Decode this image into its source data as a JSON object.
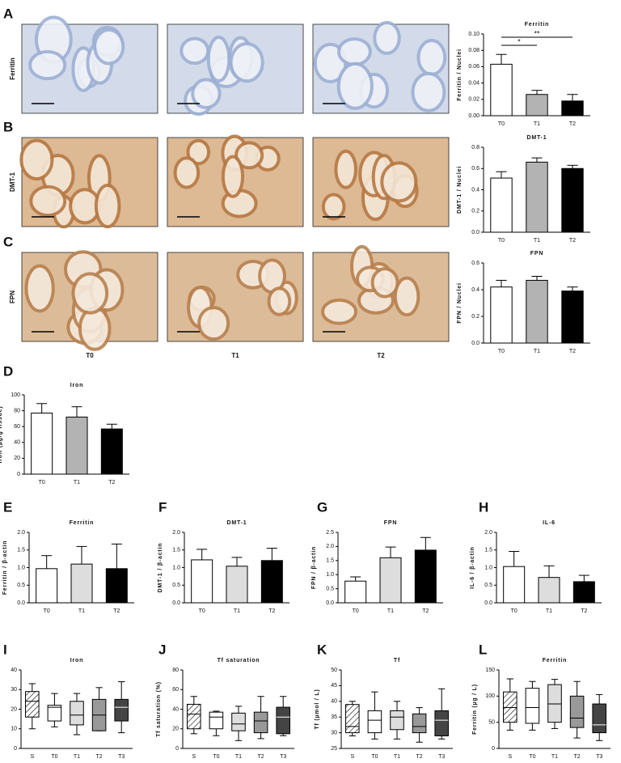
{
  "image_grid": {
    "rows": [
      "Ferritin",
      "DMT-1",
      "FPN"
    ],
    "columns": [
      "T0",
      "T1",
      "T2"
    ]
  },
  "chart_data": [
    {
      "type": "bar",
      "panel": "A",
      "title": "Ferritin",
      "ylabel": "Ferritin / Nuclei",
      "categories": [
        "T0",
        "T1",
        "T2"
      ],
      "values": [
        0.063,
        0.026,
        0.018
      ],
      "errors": [
        0.012,
        0.005,
        0.008
      ],
      "colors": [
        "#ffffff",
        "#b3b3b3",
        "#000000"
      ],
      "ylim": [
        0,
        0.1
      ],
      "yticks": [
        {
          "value": 0,
          "label": "0.00"
        },
        0.02,
        0.04,
        0.06,
        0.08,
        {
          "value": 0.1,
          "label": "0.10"
        }
      ],
      "annotations": [
        "*",
        "**"
      ]
    },
    {
      "type": "bar",
      "panel": "B",
      "title": "DMT-1",
      "ylabel": "DMT-1 / Nuclei",
      "categories": [
        "T0",
        "T1",
        "T2"
      ],
      "values": [
        0.51,
        0.66,
        0.6
      ],
      "errors": [
        0.06,
        0.04,
        0.03
      ],
      "colors": [
        "#ffffff",
        "#b3b3b3",
        "#000000"
      ],
      "ylim": [
        0,
        0.8
      ],
      "yticks": [
        {
          "value": 0,
          "label": "0.0"
        },
        0.2,
        0.4,
        0.6,
        0.8
      ]
    },
    {
      "type": "bar",
      "panel": "C",
      "title": "FPN",
      "ylabel": "FPN / Nuclei",
      "categories": [
        "T0",
        "T1",
        "T2"
      ],
      "values": [
        0.42,
        0.47,
        0.39
      ],
      "errors": [
        0.05,
        0.03,
        0.03
      ],
      "colors": [
        "#ffffff",
        "#b3b3b3",
        "#000000"
      ],
      "ylim": [
        0,
        0.6
      ],
      "yticks": [
        {
          "value": 0,
          "label": "0.0"
        },
        0.2,
        0.4,
        0.6
      ]
    },
    {
      "type": "bar",
      "panel": "D",
      "title": "Iron",
      "ylabel": "Iron (µg/g tissue)",
      "categories": [
        "T0",
        "T1",
        "T2"
      ],
      "values": [
        77,
        72,
        57
      ],
      "errors": [
        12,
        13,
        6
      ],
      "colors": [
        "#ffffff",
        "#b3b3b3",
        "#000000"
      ],
      "ylim": [
        0,
        100
      ],
      "yticks": [
        0,
        20,
        40,
        60,
        80,
        100
      ]
    },
    {
      "type": "bar",
      "panel": "E",
      "title": "Ferritin",
      "ylabel": "Ferritin / β-actin",
      "categories": [
        "T0",
        "T1",
        "T2"
      ],
      "values": [
        0.97,
        1.1,
        0.97
      ],
      "errors": [
        0.37,
        0.5,
        0.7
      ],
      "colors": [
        "#ffffff",
        "#dddddd",
        "#000000"
      ],
      "ylim": [
        0,
        2
      ],
      "yticks": [
        {
          "value": 0,
          "label": "0.0"
        },
        0.5,
        {
          "value": 1,
          "label": "1.0"
        },
        1.5,
        {
          "value": 2,
          "label": "2.0"
        }
      ]
    },
    {
      "type": "bar",
      "panel": "F",
      "title": "DMT-1",
      "ylabel": "DMT-1 / β-actin",
      "categories": [
        "T0",
        "T1",
        "T2"
      ],
      "values": [
        1.22,
        1.04,
        1.2
      ],
      "errors": [
        0.3,
        0.25,
        0.35
      ],
      "colors": [
        "#ffffff",
        "#dddddd",
        "#000000"
      ],
      "ylim": [
        0,
        2
      ],
      "yticks": [
        {
          "value": 0,
          "label": "0.0"
        },
        0.5,
        {
          "value": 1,
          "label": "1.0"
        },
        1.5,
        {
          "value": 2,
          "label": "2.0"
        }
      ]
    },
    {
      "type": "bar",
      "panel": "G",
      "title": "FPN",
      "ylabel": "FPN / β-actin",
      "categories": [
        "T0",
        "T1",
        "T2"
      ],
      "values": [
        0.77,
        1.6,
        1.87
      ],
      "errors": [
        0.15,
        0.38,
        0.45
      ],
      "colors": [
        "#ffffff",
        "#dddddd",
        "#000000"
      ],
      "ylim": [
        0,
        2.5
      ],
      "yticks": [
        {
          "value": 0,
          "label": "0.0"
        },
        0.5,
        {
          "value": 1,
          "label": "1.0"
        },
        1.5,
        {
          "value": 2,
          "label": "2.0"
        },
        2.5
      ]
    },
    {
      "type": "bar",
      "panel": "H",
      "title": "IL-6",
      "ylabel": "IL-6 / β-actin",
      "categories": [
        "T0",
        "T1",
        "T2"
      ],
      "values": [
        1.03,
        0.72,
        0.6
      ],
      "errors": [
        0.43,
        0.33,
        0.18
      ],
      "colors": [
        "#ffffff",
        "#dddddd",
        "#000000"
      ],
      "ylim": [
        0,
        2
      ],
      "yticks": [
        {
          "value": 0,
          "label": "0.0"
        },
        0.5,
        {
          "value": 1,
          "label": "1.0"
        },
        1.5,
        {
          "value": 2,
          "label": "2.0"
        }
      ]
    },
    {
      "type": "box",
      "panel": "I",
      "title": "Iron",
      "ylabel": "Iron (µmol / L)",
      "categories": [
        "S",
        "T0",
        "T1",
        "T2",
        "T3"
      ],
      "colors": [
        "hatch",
        "#ffffff",
        "#dddddd",
        "#999999",
        "#444444"
      ],
      "boxes": [
        {
          "min": 10,
          "q1": 16,
          "median": 24,
          "q3": 29,
          "max": 33
        },
        {
          "min": 11,
          "q1": 14,
          "median": 21,
          "q3": 22,
          "max": 28
        },
        {
          "min": 7,
          "q1": 12,
          "median": 17,
          "q3": 24,
          "max": 28
        },
        {
          "min": 9,
          "q1": 9,
          "median": 17,
          "q3": 25,
          "max": 31
        },
        {
          "min": 8,
          "q1": 14,
          "median": 21,
          "q3": 25,
          "max": 34
        }
      ],
      "ylim": [
        0,
        40
      ],
      "yticks": [
        0,
        10,
        20,
        30,
        40
      ]
    },
    {
      "type": "box",
      "panel": "J",
      "title": "Tf saturation",
      "ylabel": "Tf saturation (%)",
      "categories": [
        "S",
        "T0",
        "T1",
        "T2",
        "T3"
      ],
      "colors": [
        "hatch",
        "#ffffff",
        "#dddddd",
        "#999999",
        "#444444"
      ],
      "boxes": [
        {
          "min": 15,
          "q1": 20,
          "median": 35,
          "q3": 45,
          "max": 53
        },
        {
          "min": 13,
          "q1": 20,
          "median": 32,
          "q3": 37,
          "max": 38
        },
        {
          "min": 8,
          "q1": 18,
          "median": 25,
          "q3": 36,
          "max": 43
        },
        {
          "min": 10,
          "q1": 16,
          "median": 28,
          "q3": 37,
          "max": 53
        },
        {
          "min": 13,
          "q1": 15,
          "median": 32,
          "q3": 42,
          "max": 53
        }
      ],
      "ylim": [
        0,
        80
      ],
      "yticks": [
        0,
        20,
        40,
        60,
        80
      ]
    },
    {
      "type": "box",
      "panel": "K",
      "title": "Tf",
      "ylabel": "Tf (µmol / L)",
      "categories": [
        "S",
        "T0",
        "T1",
        "T2",
        "T3"
      ],
      "colors": [
        "hatch",
        "#ffffff",
        "#dddddd",
        "#999999",
        "#444444"
      ],
      "boxes": [
        {
          "min": 29,
          "q1": 30,
          "median": 32,
          "q3": 39,
          "max": 40
        },
        {
          "min": 28,
          "q1": 30,
          "median": 34,
          "q3": 37,
          "max": 43
        },
        {
          "min": 28,
          "q1": 31,
          "median": 35,
          "q3": 37,
          "max": 40
        },
        {
          "min": 27,
          "q1": 30,
          "median": 32,
          "q3": 36,
          "max": 38
        },
        {
          "min": 28,
          "q1": 29,
          "median": 34,
          "q3": 37,
          "max": 44
        }
      ],
      "ylim": [
        25,
        50
      ],
      "yticks": [
        25,
        30,
        35,
        40,
        45,
        50
      ]
    },
    {
      "type": "box",
      "panel": "L",
      "title": "Ferritin",
      "ylabel": "Ferritin (µg / L)",
      "categories": [
        "S",
        "T0",
        "T1",
        "T2",
        "T3"
      ],
      "colors": [
        "hatch",
        "#ffffff",
        "#dddddd",
        "#999999",
        "#444444"
      ],
      "boxes": [
        {
          "min": 35,
          "q1": 50,
          "median": 78,
          "q3": 108,
          "max": 133
        },
        {
          "min": 35,
          "q1": 48,
          "median": 78,
          "q3": 115,
          "max": 128
        },
        {
          "min": 38,
          "q1": 50,
          "median": 85,
          "q3": 122,
          "max": 132
        },
        {
          "min": 20,
          "q1": 40,
          "median": 58,
          "q3": 100,
          "max": 128
        },
        {
          "min": 15,
          "q1": 30,
          "median": 45,
          "q3": 85,
          "max": 103
        }
      ],
      "ylim": [
        0,
        150
      ],
      "yticks": [
        0,
        50,
        100,
        150
      ]
    }
  ]
}
